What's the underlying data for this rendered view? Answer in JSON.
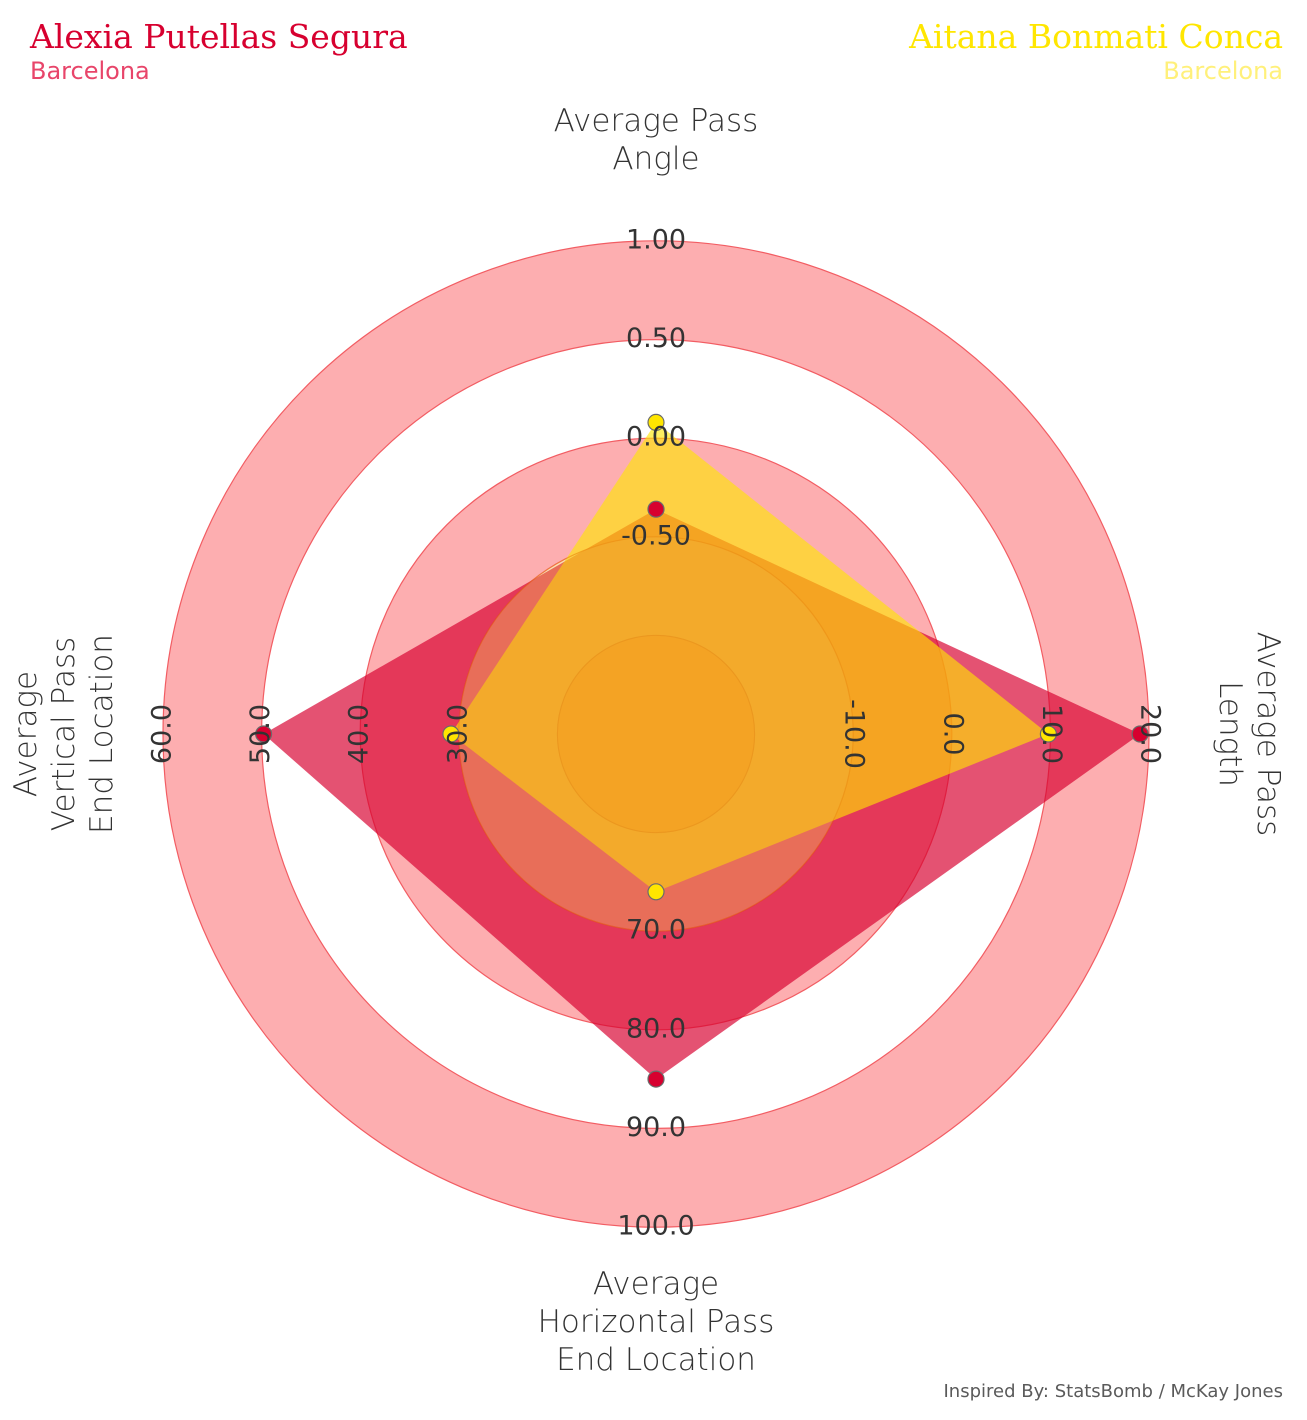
{
  "header": {
    "left_player": "Alexia Putellas Segura",
    "left_team": "Barcelona",
    "right_player": "Aitana Bonmati Conca",
    "right_team": "Barcelona"
  },
  "colors": {
    "player1": "#d7002f",
    "player1_sub": "#e8456a",
    "player2": "#ffe600",
    "player2_sub": "#fff07a",
    "ring": "#fdaeb0",
    "ring_stroke": "#f25d63"
  },
  "credit": "Inspired By: StatsBomb / McKay Jones",
  "chart_data": {
    "type": "radar",
    "axes": [
      {
        "name": "Average Pass\nAngle",
        "min": -1.5,
        "max": 1.0,
        "ticks": [
          "-0.50",
          "0.00",
          "0.50",
          "1.00"
        ],
        "tick_values": [
          -0.5,
          0.0,
          0.5,
          1.0
        ]
      },
      {
        "name": "Average Pass\nLength",
        "min": -30.0,
        "max": 20.0,
        "ticks": [
          "-10.0",
          "0.0",
          "10.0",
          "20.0"
        ],
        "tick_values": [
          -10.0,
          0.0,
          10.0,
          20.0
        ]
      },
      {
        "name": "Average\nHorizontal Pass\nEnd Location",
        "min": 50.0,
        "max": 100.0,
        "ticks": [
          "70.0",
          "80.0",
          "90.0",
          "100.0"
        ],
        "tick_values": [
          70.0,
          80.0,
          90.0,
          100.0
        ]
      },
      {
        "name": "Average\nVertical Pass\nEnd Location",
        "min": 10.0,
        "max": 60.0,
        "ticks": [
          "30.0",
          "40.0",
          "50.0",
          "60.0"
        ],
        "tick_values": [
          30.0,
          40.0,
          50.0,
          60.0
        ]
      }
    ],
    "series": [
      {
        "name": "Alexia Putellas Segura",
        "values": [
          -0.36,
          19.1,
          85.0,
          49.8
        ]
      },
      {
        "name": "Aitana Bonmati Conca",
        "values": [
          0.08,
          9.8,
          66.0,
          30.8
        ]
      }
    ]
  }
}
